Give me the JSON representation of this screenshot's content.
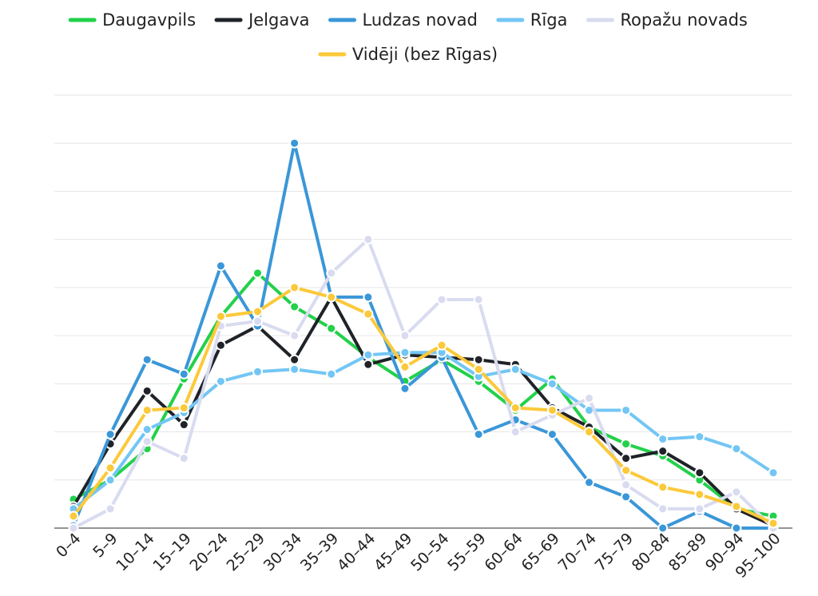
{
  "chart_data": {
    "type": "line",
    "title": "",
    "xlabel": "",
    "ylabel": "",
    "ylim": [
      0,
      9
    ],
    "grid": true,
    "legend_position": "top-center",
    "categories": [
      "0–4",
      "5–9",
      "10–14",
      "15–19",
      "20–24",
      "25–29",
      "30–34",
      "35–39",
      "40–44",
      "45–49",
      "50–54",
      "55–59",
      "60–64",
      "65–69",
      "70–74",
      "75–79",
      "80–84",
      "85–89",
      "90–94",
      "95–100"
    ],
    "series": [
      {
        "name": "Daugavpils",
        "color": "#22d14a",
        "values": [
          0.6,
          1.0,
          1.65,
          3.1,
          4.4,
          5.3,
          4.6,
          4.15,
          3.55,
          3.05,
          3.5,
          3.05,
          2.45,
          3.1,
          2.1,
          1.75,
          1.5,
          1.0,
          0.4,
          0.25
        ]
      },
      {
        "name": "Jelgava",
        "color": "#1f2328",
        "values": [
          0.45,
          1.75,
          2.85,
          2.15,
          3.8,
          4.2,
          3.5,
          4.8,
          3.4,
          3.6,
          3.55,
          3.5,
          3.4,
          2.5,
          2.1,
          1.45,
          1.6,
          1.15,
          0.4,
          0.05
        ]
      },
      {
        "name": "Ludzas novad",
        "color": "#3a97d8",
        "values": [
          0.05,
          1.95,
          3.5,
          3.2,
          5.45,
          4.2,
          8.0,
          4.8,
          4.8,
          2.9,
          3.55,
          1.95,
          2.25,
          1.95,
          0.95,
          0.65,
          0.0,
          0.35,
          0.0,
          0.0
        ]
      },
      {
        "name": "Rīga",
        "color": "#73c6f4",
        "values": [
          0.4,
          1.0,
          2.05,
          2.4,
          3.05,
          3.25,
          3.3,
          3.2,
          3.6,
          3.65,
          3.65,
          3.15,
          3.3,
          3.0,
          2.45,
          2.45,
          1.85,
          1.9,
          1.65,
          1.15
        ]
      },
      {
        "name": "Ropažu novads",
        "color": "#d9dbf0",
        "values": [
          0.0,
          0.4,
          1.8,
          1.45,
          4.2,
          4.3,
          4.0,
          5.3,
          6.0,
          4.0,
          4.75,
          4.75,
          2.0,
          2.35,
          2.7,
          0.9,
          0.4,
          0.4,
          0.75,
          0.0
        ]
      },
      {
        "name": "Vidēji (bez Rīgas)",
        "color": "#fbc93a",
        "values": [
          0.25,
          1.25,
          2.45,
          2.5,
          4.4,
          4.5,
          5.0,
          4.8,
          4.45,
          3.35,
          3.8,
          3.3,
          2.5,
          2.45,
          2.0,
          1.2,
          0.85,
          0.7,
          0.45,
          0.1
        ]
      }
    ]
  }
}
